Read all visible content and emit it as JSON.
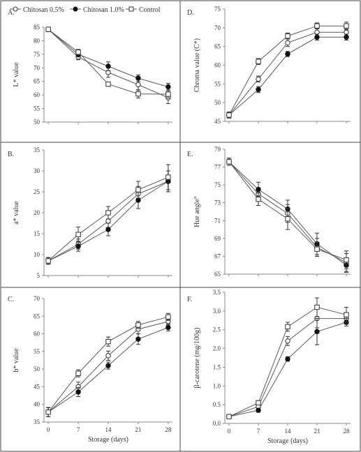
{
  "legend": {
    "entries": [
      {
        "label": "Chitosan 0.5%",
        "marker": "open-circle"
      },
      {
        "label": "Chitosan 1.0%",
        "marker": "filled-circle"
      },
      {
        "label": "Control",
        "marker": "open-square"
      }
    ]
  },
  "colors": {
    "line": "#5a5a5a",
    "axis": "#888888",
    "border": "#444444",
    "background": "#ffffff"
  },
  "chart_data": [
    {
      "id": "A",
      "panel_label": "A.",
      "type": "line",
      "xlabel": "",
      "ylabel": "L* value",
      "x": [
        0,
        7,
        14,
        21,
        28
      ],
      "xticks": [
        "",
        "",
        "",
        "",
        ""
      ],
      "ylim": [
        50,
        85
      ],
      "yticks": [
        50,
        55,
        60,
        65,
        70,
        75,
        80,
        85
      ],
      "series": [
        {
          "name": "Chitosan 0.5%",
          "values": [
            84.2,
            74.0,
            68.3,
            63.8,
            59.0
          ],
          "err": [
            0.8,
            1.0,
            1.8,
            2.0,
            2.2
          ]
        },
        {
          "name": "Chitosan 1.0%",
          "values": [
            84.2,
            75.0,
            70.6,
            66.2,
            63.0
          ],
          "err": [
            0.8,
            1.0,
            1.6,
            1.2,
            1.3
          ]
        },
        {
          "name": "Control",
          "values": [
            84.2,
            75.8,
            64.0,
            60.4,
            60.3
          ],
          "err": [
            0.8,
            1.0,
            0.8,
            1.5,
            1.5
          ]
        }
      ]
    },
    {
      "id": "D",
      "panel_label": "D.",
      "type": "line",
      "xlabel": "",
      "ylabel": "Chroma value (C*)",
      "x": [
        0,
        7,
        14,
        21,
        28
      ],
      "xticks": [
        "",
        "",
        "",
        "",
        ""
      ],
      "ylim": [
        45,
        75
      ],
      "yticks": [
        45,
        50,
        55,
        60,
        65,
        70,
        75
      ],
      "series": [
        {
          "name": "Chitosan 0.5%",
          "values": [
            46.7,
            56.3,
            66.0,
            68.8,
            68.8
          ],
          "err": [
            0.8,
            0.8,
            1.0,
            1.0,
            1.0
          ]
        },
        {
          "name": "Chitosan 1.0%",
          "values": [
            46.7,
            53.5,
            63.0,
            67.5,
            67.5
          ],
          "err": [
            0.8,
            0.8,
            0.7,
            0.8,
            0.8
          ]
        },
        {
          "name": "Control",
          "values": [
            46.7,
            61.0,
            67.8,
            70.5,
            70.5
          ],
          "err": [
            0.8,
            0.8,
            0.8,
            0.8,
            1.0
          ]
        }
      ]
    },
    {
      "id": "B",
      "panel_label": "B.",
      "type": "line",
      "xlabel": "",
      "ylabel": "a* value",
      "x": [
        0,
        7,
        14,
        21,
        28
      ],
      "xticks": [
        "",
        "",
        "",
        "",
        ""
      ],
      "ylim": [
        5,
        35
      ],
      "yticks": [
        5,
        10,
        15,
        20,
        25,
        30,
        35
      ],
      "series": [
        {
          "name": "Chitosan 0.5%",
          "values": [
            8.5,
            12.5,
            18.0,
            24.5,
            27.5
          ],
          "err": [
            0.8,
            1.2,
            1.5,
            1.8,
            2.5
          ]
        },
        {
          "name": "Chitosan 1.0%",
          "values": [
            8.5,
            12.0,
            16.0,
            23.0,
            27.5
          ],
          "err": [
            0.8,
            1.2,
            1.5,
            2.0,
            2.5
          ]
        },
        {
          "name": "Control",
          "values": [
            8.5,
            14.8,
            20.0,
            25.5,
            28.5
          ],
          "err": [
            0.8,
            1.8,
            1.5,
            2.0,
            3.0
          ]
        }
      ]
    },
    {
      "id": "E",
      "panel_label": "E.",
      "type": "line",
      "xlabel": "",
      "ylabel": "Hue angle°",
      "x": [
        0,
        7,
        14,
        21,
        28
      ],
      "xticks": [
        "",
        "",
        "",
        "",
        ""
      ],
      "ylim": [
        65,
        79
      ],
      "yticks": [
        65,
        67,
        69,
        71,
        73,
        75,
        77,
        79
      ],
      "series": [
        {
          "name": "Chitosan 0.5%",
          "values": [
            77.6,
            74.0,
            71.8,
            68.0,
            66.3
          ],
          "err": [
            0.4,
            0.7,
            1.0,
            1.0,
            1.0
          ]
        },
        {
          "name": "Chitosan 1.0%",
          "values": [
            77.6,
            74.5,
            72.3,
            68.4,
            66.0
          ],
          "err": [
            0.4,
            0.8,
            1.0,
            1.2,
            0.8
          ]
        },
        {
          "name": "Control",
          "values": [
            77.6,
            73.4,
            71.2,
            67.8,
            66.6
          ],
          "err": [
            0.4,
            0.7,
            1.2,
            0.8,
            1.0
          ]
        }
      ]
    },
    {
      "id": "C",
      "panel_label": "C.",
      "type": "line",
      "xlabel": "Storage (days)",
      "ylabel": "b* value",
      "x": [
        0,
        7,
        14,
        21,
        28
      ],
      "xticks": [
        "0",
        "7",
        "14",
        "21",
        "28"
      ],
      "ylim": [
        35,
        70
      ],
      "yticks": [
        35,
        40,
        45,
        50,
        55,
        60,
        65,
        70
      ],
      "series": [
        {
          "name": "Chitosan 0.5%",
          "values": [
            37.8,
            45.0,
            53.8,
            61.3,
            63.5
          ],
          "err": [
            1.3,
            1.3,
            1.3,
            1.3,
            1.0
          ]
        },
        {
          "name": "Chitosan 1.0%",
          "values": [
            37.8,
            43.5,
            51.0,
            58.5,
            61.8
          ],
          "err": [
            1.3,
            1.3,
            1.0,
            1.5,
            1.0
          ]
        },
        {
          "name": "Control",
          "values": [
            37.8,
            48.8,
            57.8,
            62.5,
            64.8
          ],
          "err": [
            1.3,
            1.0,
            1.3,
            1.0,
            1.0
          ]
        }
      ]
    },
    {
      "id": "F",
      "panel_label": "F.",
      "type": "line",
      "xlabel": "Storage (days)",
      "ylabel": "β-carotene (mg/100g)",
      "x": [
        0,
        7,
        14,
        21,
        28
      ],
      "xticks": [
        "0",
        "7",
        "14",
        "21",
        "28"
      ],
      "ylim": [
        0,
        3.5
      ],
      "yticks": [
        "0.0",
        "0.5",
        "1.0",
        "1.5",
        "2.0",
        "2.5",
        "3.0",
        "3.5"
      ],
      "series": [
        {
          "name": "Chitosan 0.5%",
          "values": [
            0.18,
            0.45,
            2.2,
            2.8,
            2.8
          ],
          "err": [
            0.03,
            0.05,
            0.12,
            0.25,
            0.15
          ]
        },
        {
          "name": "Chitosan 1.0%",
          "values": [
            0.18,
            0.35,
            1.72,
            2.45,
            2.7
          ],
          "err": [
            0.03,
            0.05,
            0.06,
            0.35,
            0.1
          ]
        },
        {
          "name": "Control",
          "values": [
            0.18,
            0.55,
            2.58,
            3.1,
            2.9
          ],
          "err": [
            0.03,
            0.05,
            0.12,
            0.25,
            0.2
          ]
        }
      ]
    }
  ]
}
